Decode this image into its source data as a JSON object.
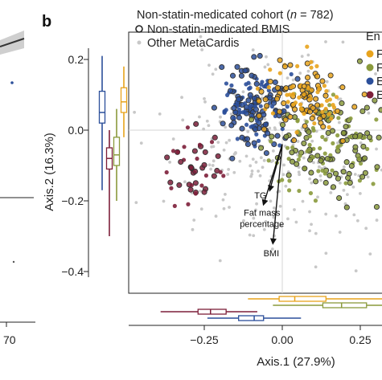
{
  "panel_letter": "b",
  "left_panel": {
    "tick_label": "70"
  },
  "colors": {
    "enterotype_1": "#e8a31c",
    "enterotype_2": "#8a9a3c",
    "enterotype_3": "#2b4f9a",
    "enterotype_4": "#7d1f3a",
    "other": "#c8c8c8",
    "bmis_outline": "#222222"
  },
  "chart_data": {
    "type": "scatter",
    "title_prefix": "Non-statin-medicated cohort (",
    "title_n": "n",
    "title_suffix": " = 782)",
    "xlabel": "Axis.1 (27.9%)",
    "ylabel": "Axis.2 (16.3%)",
    "xlim": [
      -0.46,
      0.35
    ],
    "ylim": [
      -0.46,
      0.27
    ],
    "x_ticks": [
      -0.25,
      0.0,
      0.25
    ],
    "x_tick_labels": [
      "−0.25",
      "0.00",
      "0.25"
    ],
    "y_ticks": [
      0.2,
      0.0,
      -0.2,
      -0.4
    ],
    "y_tick_labels": [
      "0.2",
      "0.0",
      "−0.2",
      "−0.4"
    ],
    "grid": false,
    "reference_lines": {
      "x": 0.0,
      "y": 0.0
    },
    "legend": {
      "placement": "top",
      "entries": [
        {
          "label": "Non-statin-medicated BMIS",
          "marker": "open-circle"
        },
        {
          "label": "Other MetaCardis",
          "marker": "grey-dot"
        }
      ],
      "group_title": "En",
      "groups": [
        {
          "label": "F",
          "color": "#e8a31c"
        },
        {
          "label": "F",
          "color": "#8a9a3c"
        },
        {
          "label": "E",
          "color": "#2b4f9a"
        },
        {
          "label": "E",
          "color": "#7d1f3a"
        }
      ]
    },
    "arrows": [
      {
        "label": "TG",
        "to": [
          -0.04,
          -0.17
        ]
      },
      {
        "label": "Fat mass percentage",
        "to": [
          -0.06,
          -0.21
        ]
      },
      {
        "label": "BMI",
        "to": [
          -0.03,
          -0.32
        ]
      }
    ],
    "arrow_origin": [
      0.0,
      -0.04
    ],
    "clusters": [
      {
        "name": "group-1",
        "color": "#e8a31c",
        "center": [
          0.07,
          0.09
        ],
        "spread": [
          0.07,
          0.05
        ],
        "count": 120
      },
      {
        "name": "group-2",
        "color": "#8a9a3c",
        "center": [
          0.16,
          -0.04
        ],
        "spread": [
          0.1,
          0.08
        ],
        "count": 170
      },
      {
        "name": "group-3",
        "color": "#2b4f9a",
        "center": [
          -0.1,
          0.06
        ],
        "spread": [
          0.06,
          0.06
        ],
        "count": 150
      },
      {
        "name": "group-4",
        "color": "#7d1f3a",
        "center": [
          -0.3,
          -0.1
        ],
        "spread": [
          0.05,
          0.05
        ],
        "count": 45
      },
      {
        "name": "other-metacardis",
        "color": "#c8c8c8",
        "center": [
          0.0,
          -0.07
        ],
        "spread": [
          0.18,
          0.13
        ],
        "count": 240
      }
    ],
    "boxplots_y": [
      {
        "color": "#2b4f9a",
        "q1": 0.02,
        "median": 0.05,
        "q3": 0.11,
        "whisker_low": -0.17,
        "whisker_high": 0.21
      },
      {
        "color": "#7d1f3a",
        "q1": -0.11,
        "median": -0.08,
        "q3": -0.05,
        "whisker_low": -0.3,
        "whisker_high": 0.0
      },
      {
        "color": "#8a9a3c",
        "q1": -0.1,
        "median": -0.07,
        "q3": -0.02,
        "whisker_low": -0.2,
        "whisker_high": 0.06
      },
      {
        "color": "#e8a31c",
        "q1": 0.05,
        "median": 0.08,
        "q3": 0.12,
        "whisker_low": -0.02,
        "whisker_high": 0.18
      }
    ],
    "boxplots_x": [
      {
        "color": "#e8a31c",
        "q1": -0.01,
        "median": 0.04,
        "q3": 0.14,
        "whisker_low": -0.11,
        "whisker_high": 0.32
      },
      {
        "color": "#8a9a3c",
        "q1": 0.13,
        "median": 0.19,
        "q3": 0.27,
        "whisker_low": -0.03,
        "whisker_high": 0.35
      },
      {
        "color": "#7d1f3a",
        "q1": -0.27,
        "median": -0.23,
        "q3": -0.18,
        "whisker_low": -0.39,
        "whisker_high": -0.08
      },
      {
        "color": "#2b4f9a",
        "q1": -0.14,
        "median": -0.09,
        "q3": -0.06,
        "whisker_low": -0.24,
        "whisker_high": 0.06
      }
    ]
  }
}
